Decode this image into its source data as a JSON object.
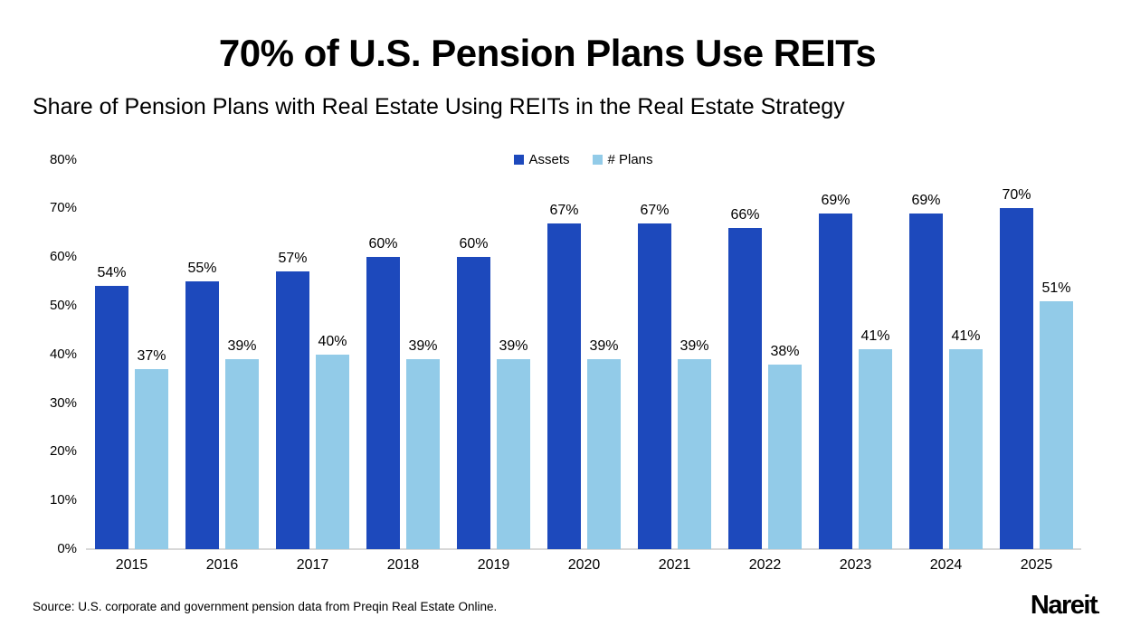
{
  "page": {
    "title": "70% of U.S. Pension Plans Use REITs",
    "subtitle": "Share of Pension Plans with Real Estate Using REITs in the Real Estate Strategy",
    "source": "Source: U.S. corporate and government pension data from Preqin Real Estate Online.",
    "brand": "Nareit",
    "brand_suffix": "."
  },
  "chart_data": {
    "type": "bar",
    "title": "70% of U.S. Pension Plans Use REITs",
    "subtitle": "Share of Pension Plans with Real Estate Using REITs in the Real Estate Strategy",
    "categories": [
      "2015",
      "2016",
      "2017",
      "2018",
      "2019",
      "2020",
      "2021",
      "2022",
      "2023",
      "2024",
      "2025"
    ],
    "series": [
      {
        "name": "Assets",
        "color": "#1d49bc",
        "values": [
          54,
          55,
          57,
          60,
          60,
          67,
          67,
          66,
          69,
          69,
          70
        ]
      },
      {
        "name": "# Plans",
        "color": "#92cbe8",
        "values": [
          37,
          39,
          40,
          39,
          39,
          39,
          39,
          38,
          41,
          41,
          51
        ]
      }
    ],
    "value_suffix": "%",
    "ylabel": "",
    "xlabel": "",
    "ylim": [
      0,
      80
    ],
    "yticks": [
      "0%",
      "10%",
      "20%",
      "30%",
      "40%",
      "50%",
      "60%",
      "70%",
      "80%"
    ],
    "grid": false,
    "legend_position": "top-center",
    "axis_line_color": "#d8d8d8",
    "text_color": "#000000",
    "background_color": "#ffffff"
  }
}
